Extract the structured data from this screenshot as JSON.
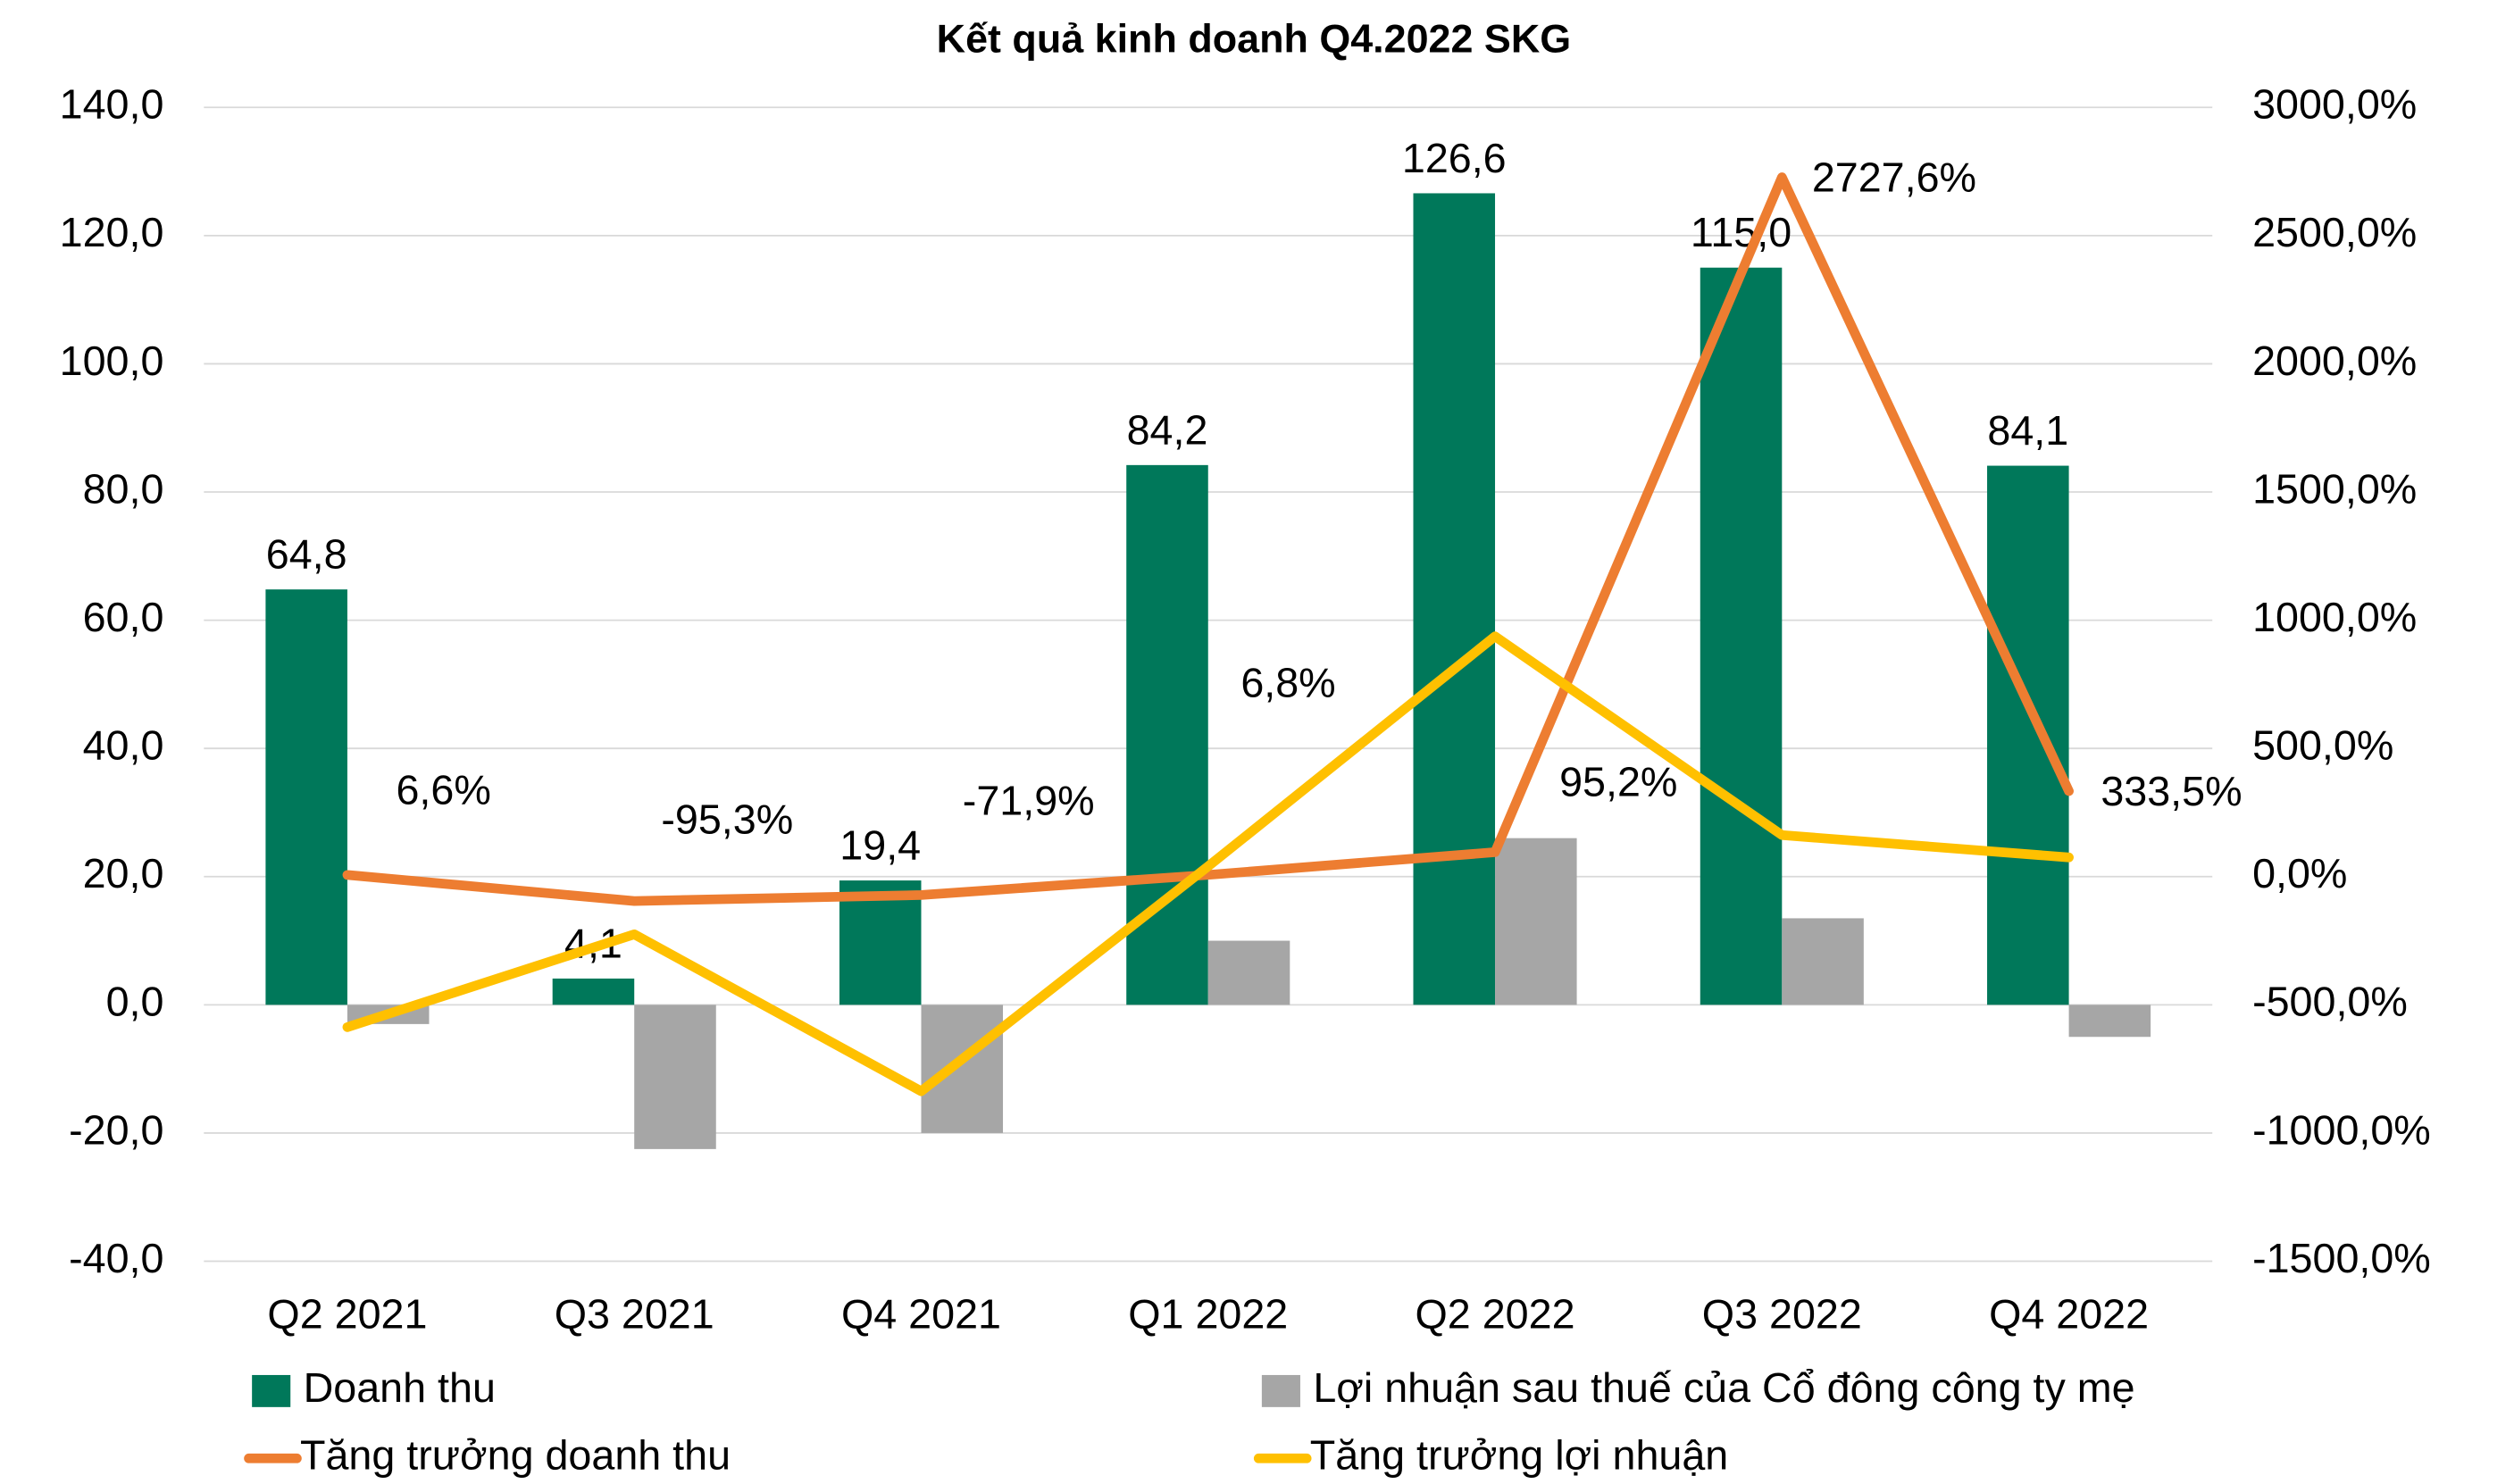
{
  "chart_data": {
    "type": "bar",
    "title": "Kết quả kinh doanh Q4.2022 SKG",
    "categories": [
      "Q2 2021",
      "Q3 2021",
      "Q4 2021",
      "Q1 2022",
      "Q2 2022",
      "Q3 2022",
      "Q4 2022"
    ],
    "series": [
      {
        "name": "Doanh thu",
        "type": "bar",
        "color": "#00785a",
        "values": [
          64.8,
          4.1,
          19.4,
          84.2,
          126.6,
          115.0,
          84.1
        ],
        "value_labels": [
          "64,8",
          "4,1",
          "19,4",
          "84,2",
          "126,6",
          "115,0",
          "84,1"
        ]
      },
      {
        "name": "Lợi nhuận sau thuế của Cổ đông công ty mẹ",
        "type": "bar",
        "color": "#a6a6a6",
        "values": [
          -3,
          -22.5,
          -20,
          10,
          26,
          13.5,
          -5
        ]
      },
      {
        "name": "Tăng trưởng doanh thu",
        "type": "line",
        "axis": "y2",
        "color": "#ed7d31",
        "values": [
          6.6,
          -95.3,
          -71.9,
          6.8,
          95.2,
          2727.6,
          333.5
        ],
        "value_labels": [
          "6,6%",
          "-95,3%",
          "-71,9%",
          "6,8%",
          "95,2%",
          "2727,6%",
          "333,5%"
        ]
      },
      {
        "name": "Tăng trưởng lợi nhuận",
        "type": "line",
        "axis": "y2",
        "color": "#ffc000",
        "values": [
          -587,
          -225,
          -837,
          40,
          937,
          162,
          75
        ]
      }
    ],
    "ylim": [
      -40,
      140
    ],
    "yticks": [
      {
        "value": -40,
        "label": "-40,0"
      },
      {
        "value": -20,
        "label": "-20,0"
      },
      {
        "value": 0,
        "label": "0,0"
      },
      {
        "value": 20,
        "label": "20,0"
      },
      {
        "value": 40,
        "label": "40,0"
      },
      {
        "value": 60,
        "label": "60,0"
      },
      {
        "value": 80,
        "label": "80,0"
      },
      {
        "value": 100,
        "label": "100,0"
      },
      {
        "value": 120,
        "label": "120,0"
      },
      {
        "value": 140,
        "label": "140,0"
      }
    ],
    "y2lim": [
      -1500,
      3000
    ],
    "y2ticks": [
      {
        "value": -1500,
        "label": "-1500,0%"
      },
      {
        "value": -1000,
        "label": "-1000,0%"
      },
      {
        "value": -500,
        "label": "-500,0%"
      },
      {
        "value": 0,
        "label": "0,0%"
      },
      {
        "value": 500,
        "label": "500,0%"
      },
      {
        "value": 1000,
        "label": "1000,0%"
      },
      {
        "value": 1500,
        "label": "1500,0%"
      },
      {
        "value": 2000,
        "label": "2000,0%"
      },
      {
        "value": 2500,
        "label": "2500,0%"
      },
      {
        "value": 3000,
        "label": "3000,0%"
      }
    ],
    "grid": true
  }
}
